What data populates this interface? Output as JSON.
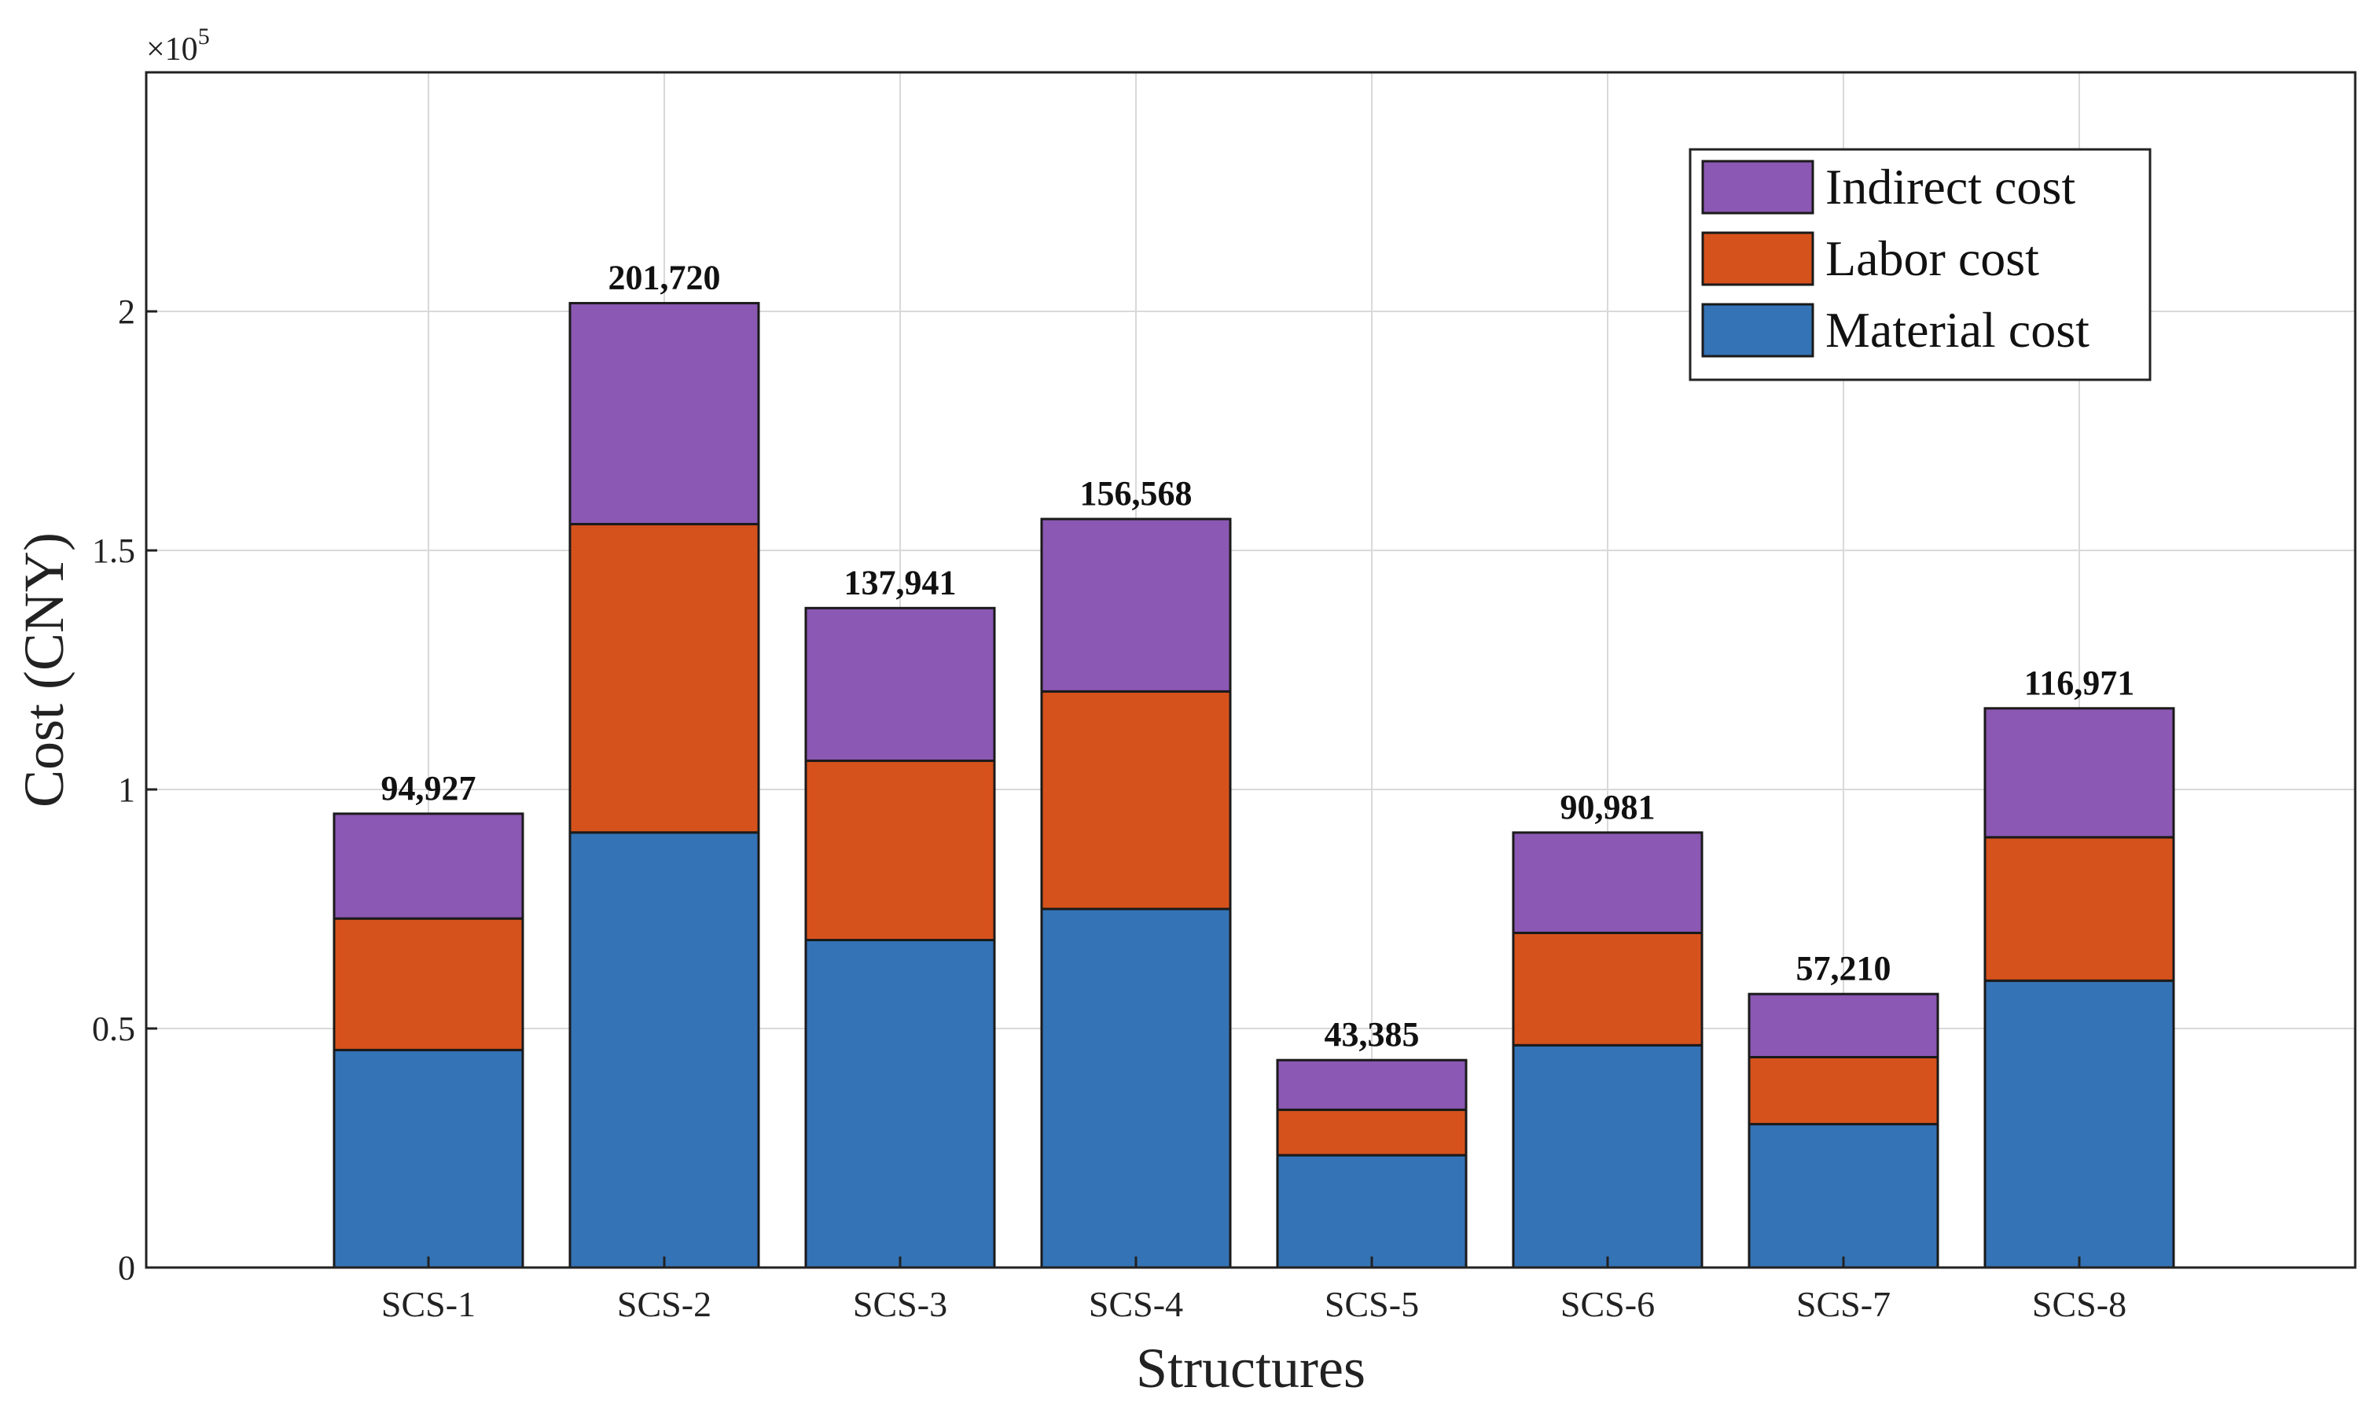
{
  "chart_data": {
    "type": "bar",
    "stacked": true,
    "categories": [
      "SCS-1",
      "SCS-2",
      "SCS-3",
      "SCS-4",
      "SCS-5",
      "SCS-6",
      "SCS-7",
      "SCS-8"
    ],
    "series": [
      {
        "name": "Material cost",
        "color": "#3473b5",
        "values": [
          45500,
          91000,
          68500,
          75000,
          23500,
          46500,
          30000,
          60000
        ]
      },
      {
        "name": "Labor cost",
        "color": "#d6521c",
        "values": [
          27500,
          64500,
          37500,
          45500,
          9500,
          23500,
          14000,
          30000
        ]
      },
      {
        "name": "Indirect cost",
        "color": "#8b58b3",
        "values": [
          21927,
          46220,
          31941,
          36068,
          10385,
          20981,
          13210,
          26971
        ]
      }
    ],
    "totals": [
      94927,
      201720,
      137941,
      156568,
      43385,
      90981,
      57210,
      116971
    ],
    "total_labels": [
      "94,927",
      "201,720",
      "137,941",
      "156,568",
      "43,385",
      "90,981",
      "57,210",
      "116,971"
    ],
    "xlabel": "Structures",
    "ylabel": "Cost (CNY)",
    "ylim": [
      0,
      250000
    ],
    "yticks": [
      0,
      50000,
      100000,
      150000,
      200000
    ],
    "ytick_labels": [
      "0",
      "0.5",
      "1",
      "1.5",
      "2"
    ],
    "y_exponent_label": "×10",
    "y_exponent_power": "5",
    "grid": true,
    "legend_position": "top-right",
    "legend_order": [
      "Indirect cost",
      "Labor cost",
      "Material cost"
    ]
  }
}
